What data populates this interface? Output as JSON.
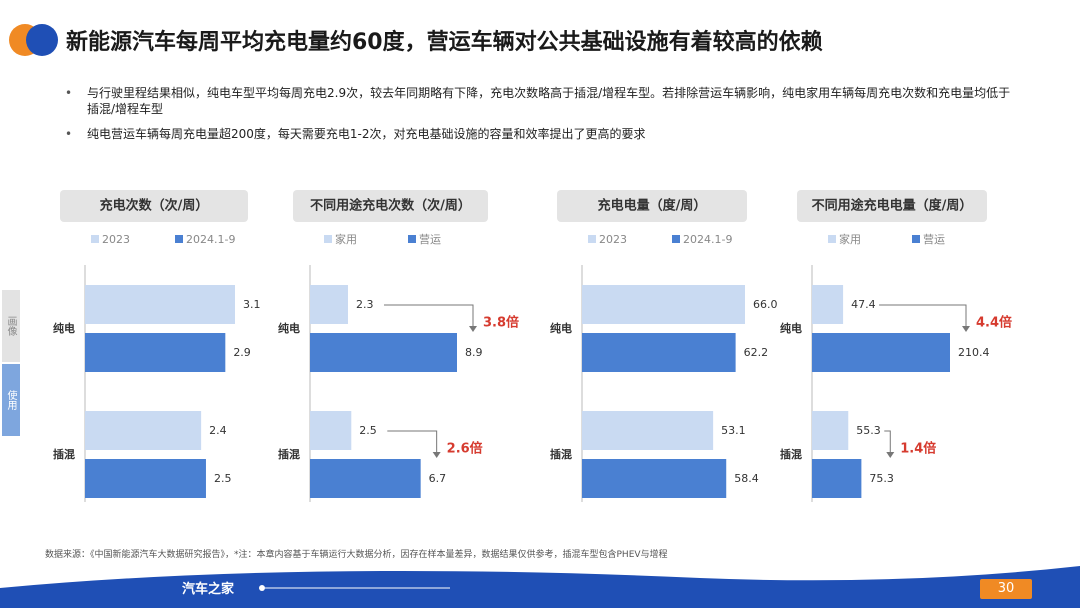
{
  "title": "新能源汽车每周平均充电量约60度，营运车辆对公共基础设施有着较高的依赖",
  "bullets": [
    "与行驶里程结果相似，纯电车型平均每周充电2.9次，较去年同期略有下降，充电次数略高于插混/增程车型。若排除营运车辆影响，纯电家用车辆每周充电次数和充电量均低于插混/增程车型",
    "纯电营运车辆每周充电量超200度，每天需要充电1-2次，对充电基础设施的容量和效率提出了更高的要求"
  ],
  "side_tabs": [
    "画像",
    "使用"
  ],
  "source": "数据来源：《中国新能源汽车大数据研究报告》，*注：本章内容基于车辆运行大数据分析，因存在样本量差异，数据结果仅供参考，插混车型包含PHEV与增程",
  "footer_brand": "汽车之家",
  "page_number": "30",
  "chart_data": [
    {
      "type": "bar",
      "orientation": "horizontal",
      "title": "充电次数（次/周）",
      "categories": [
        "纯电",
        "插混"
      ],
      "series": [
        {
          "name": "2023",
          "color": "#c9daf2",
          "values": [
            3.1,
            2.4
          ]
        },
        {
          "name": "2024.1-9",
          "color": "#4a80d2",
          "values": [
            2.9,
            2.5
          ]
        }
      ]
    },
    {
      "type": "bar",
      "orientation": "horizontal",
      "title": "不同用途充电次数（次/周）",
      "categories": [
        "纯电",
        "插混"
      ],
      "series": [
        {
          "name": "家用",
          "color": "#c9daf2",
          "values": [
            2.3,
            2.5
          ]
        },
        {
          "name": "营运",
          "color": "#4a80d2",
          "values": [
            8.9,
            6.7
          ]
        }
      ],
      "annotations": [
        "3.8倍",
        "2.6倍"
      ]
    },
    {
      "type": "bar",
      "orientation": "horizontal",
      "title": "充电电量（度/周）",
      "categories": [
        "纯电",
        "插混"
      ],
      "series": [
        {
          "name": "2023",
          "color": "#c9daf2",
          "values": [
            66,
            53.1
          ],
          "value_labels": [
            "66.0",
            "53.1"
          ]
        },
        {
          "name": "2024.1-9",
          "color": "#4a80d2",
          "values": [
            62.2,
            58.4
          ]
        }
      ]
    },
    {
      "type": "bar",
      "orientation": "horizontal",
      "title": "不同用途充电电量（度/周）",
      "categories": [
        "纯电",
        "插混"
      ],
      "series": [
        {
          "name": "家用",
          "color": "#c9daf2",
          "values": [
            47.4,
            55.3
          ]
        },
        {
          "name": "营运",
          "color": "#4a80d2",
          "values": [
            210.4,
            75.3
          ]
        }
      ],
      "annotations": [
        "4.4倍",
        "1.4倍"
      ]
    }
  ]
}
